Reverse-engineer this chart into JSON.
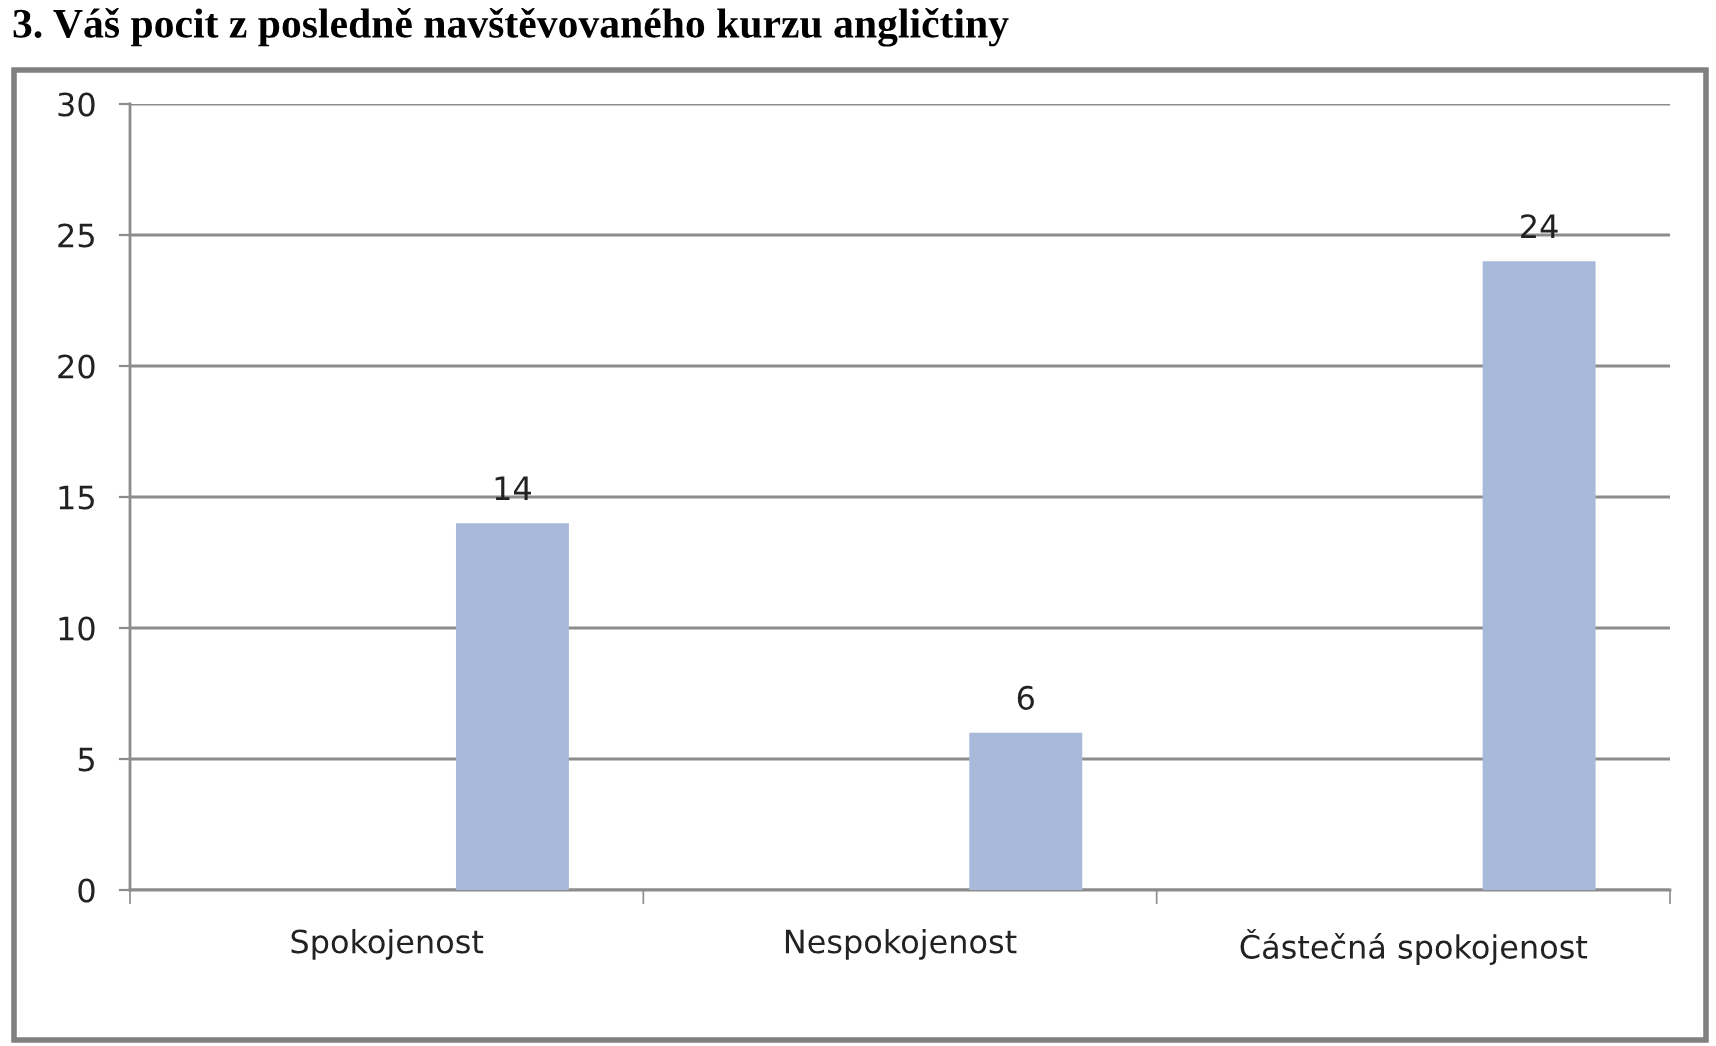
{
  "chart_data": {
    "type": "bar",
    "title": "3. Váš pocit z posledně navštěvovaného kurzu angličtiny",
    "categories": [
      "Spokojenost",
      "Nespokojenost",
      "Částečná spokojenost"
    ],
    "values": [
      14,
      6,
      24
    ],
    "color": "#a9b9da",
    "ylim": [
      0,
      30
    ],
    "yticks": [
      0,
      5,
      10,
      15,
      20,
      25,
      30
    ],
    "grid": "y",
    "data_labels": true
  }
}
